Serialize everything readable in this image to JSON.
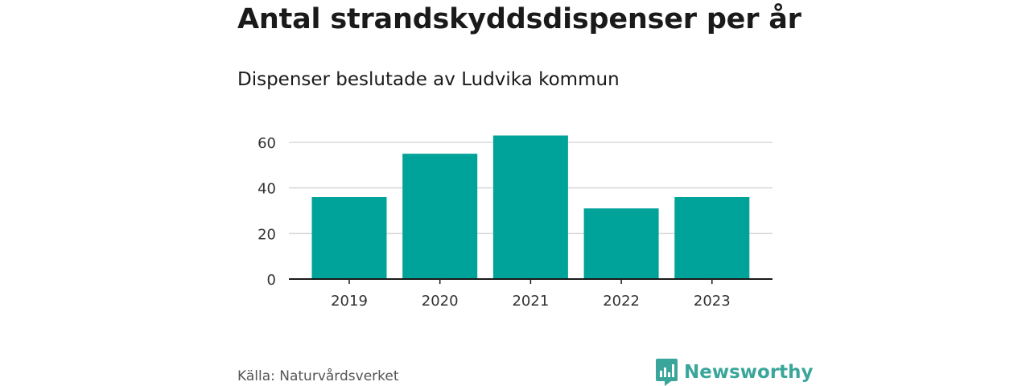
{
  "header": {
    "title": "Antal strandskyddsdispenser per år",
    "subtitle": "Dispenser beslutade av Ludvika kommun"
  },
  "footer": {
    "source": "Källa: Naturvårdsverket",
    "brand_name": "Newsworthy"
  },
  "colors": {
    "bar": "#00a39a",
    "brand": "#3aa69b",
    "grid": "#d9d9d9",
    "axis": "#1a1a1a"
  },
  "chart_data": {
    "type": "bar",
    "title": "Antal strandskyddsdispenser per år",
    "subtitle": "Dispenser beslutade av Ludvika kommun",
    "categories": [
      "2019",
      "2020",
      "2021",
      "2022",
      "2023"
    ],
    "values": [
      36,
      55,
      63,
      31,
      36
    ],
    "ylim": [
      0,
      65
    ],
    "yticks": [
      0,
      20,
      40,
      60
    ],
    "grid": true,
    "xlabel": "",
    "ylabel": ""
  }
}
